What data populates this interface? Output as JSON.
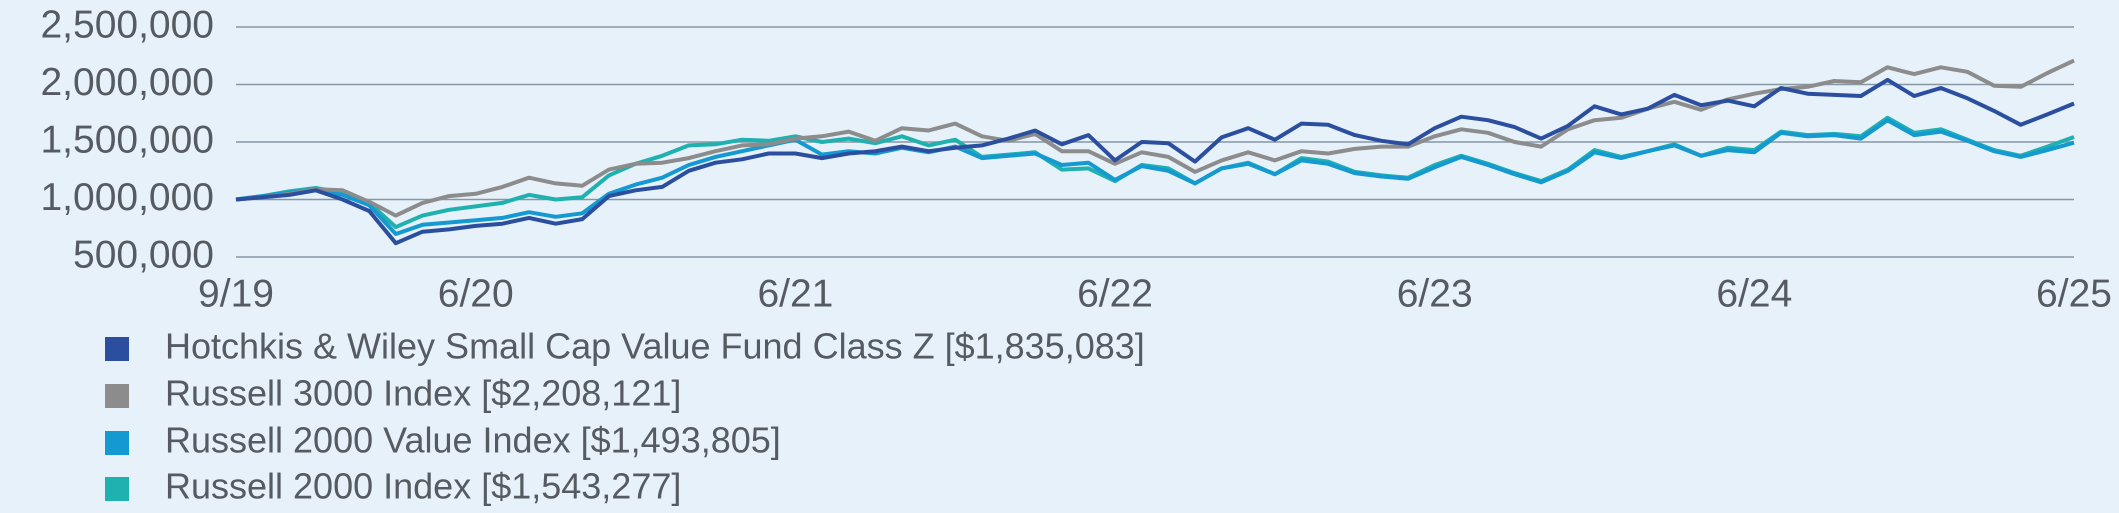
{
  "chart_data": {
    "type": "line",
    "categories": [
      "9/19",
      null,
      null,
      null,
      null,
      null,
      null,
      null,
      null,
      "6/20",
      null,
      null,
      null,
      null,
      null,
      null,
      null,
      null,
      null,
      null,
      null,
      "6/21",
      null,
      null,
      null,
      null,
      null,
      null,
      null,
      null,
      null,
      null,
      null,
      "6/22",
      null,
      null,
      null,
      null,
      null,
      null,
      null,
      null,
      null,
      null,
      null,
      "6/23",
      null,
      null,
      null,
      null,
      null,
      null,
      null,
      null,
      null,
      null,
      null,
      "6/24",
      null,
      null,
      null,
      null,
      null,
      null,
      null,
      null,
      null,
      null,
      null,
      "6/25"
    ],
    "ylim": [
      500000,
      2500000
    ],
    "yticks": [
      {
        "value": 500000,
        "label": "500,000"
      },
      {
        "value": 1000000,
        "label": "1,000,000"
      },
      {
        "value": 1500000,
        "label": "1,500,000"
      },
      {
        "value": 2000000,
        "label": "2,000,000"
      },
      {
        "value": 2500000,
        "label": "2,500,000"
      }
    ],
    "grid": true,
    "legend": "bottom-left",
    "series": [
      {
        "name": "Hotchkis & Wiley Small Cap Value Fund Class Z [$1,835,083]",
        "color": "#2b4f9e",
        "values": [
          1000000,
          1020000,
          1040000,
          1080000,
          1000000,
          900000,
          620000,
          720000,
          740000,
          770000,
          790000,
          840000,
          790000,
          830000,
          1030000,
          1080000,
          1110000,
          1250000,
          1320000,
          1350000,
          1400000,
          1400000,
          1360000,
          1400000,
          1420000,
          1460000,
          1420000,
          1450000,
          1470000,
          1530000,
          1600000,
          1480000,
          1560000,
          1340000,
          1500000,
          1490000,
          1330000,
          1540000,
          1620000,
          1520000,
          1660000,
          1650000,
          1560000,
          1510000,
          1480000,
          1620000,
          1720000,
          1690000,
          1630000,
          1530000,
          1640000,
          1810000,
          1740000,
          1790000,
          1910000,
          1820000,
          1860000,
          1810000,
          1970000,
          1920000,
          1910000,
          1900000,
          2040000,
          1900000,
          1970000,
          1880000,
          1770000,
          1650000,
          1740000,
          1835083
        ]
      },
      {
        "name": "Russell 3000 Index [$2,208,121]",
        "color": "#8c8c8c",
        "values": [
          1000000,
          1020000,
          1050000,
          1090000,
          1080000,
          980000,
          860000,
          970000,
          1030000,
          1050000,
          1110000,
          1190000,
          1140000,
          1120000,
          1260000,
          1310000,
          1320000,
          1360000,
          1420000,
          1470000,
          1480000,
          1530000,
          1550000,
          1590000,
          1510000,
          1620000,
          1600000,
          1660000,
          1550000,
          1510000,
          1570000,
          1420000,
          1420000,
          1310000,
          1410000,
          1370000,
          1240000,
          1340000,
          1410000,
          1340000,
          1420000,
          1400000,
          1440000,
          1460000,
          1460000,
          1550000,
          1610000,
          1580000,
          1500000,
          1460000,
          1610000,
          1690000,
          1710000,
          1790000,
          1850000,
          1780000,
          1870000,
          1920000,
          1960000,
          1980000,
          2030000,
          2020000,
          2150000,
          2090000,
          2150000,
          2110000,
          1990000,
          1980000,
          2100000,
          2208121
        ]
      },
      {
        "name": "Russell 2000 Value Index [$1,493,805]",
        "color": "#1499d1",
        "values": [
          1000000,
          1030000,
          1060000,
          1090000,
          1040000,
          950000,
          700000,
          780000,
          800000,
          820000,
          840000,
          890000,
          850000,
          880000,
          1050000,
          1130000,
          1190000,
          1300000,
          1370000,
          1420000,
          1470000,
          1520000,
          1390000,
          1420000,
          1400000,
          1450000,
          1410000,
          1460000,
          1360000,
          1380000,
          1400000,
          1300000,
          1320000,
          1170000,
          1290000,
          1250000,
          1140000,
          1270000,
          1310000,
          1220000,
          1340000,
          1310000,
          1230000,
          1200000,
          1180000,
          1280000,
          1370000,
          1300000,
          1220000,
          1150000,
          1250000,
          1410000,
          1360000,
          1420000,
          1470000,
          1380000,
          1430000,
          1410000,
          1580000,
          1550000,
          1560000,
          1530000,
          1690000,
          1560000,
          1590000,
          1510000,
          1420000,
          1370000,
          1430000,
          1493805
        ]
      },
      {
        "name": "Russell 2000 Index [$1,543,277]",
        "color": "#1fb0b0",
        "values": [
          1000000,
          1030000,
          1070000,
          1100000,
          1060000,
          970000,
          760000,
          860000,
          910000,
          940000,
          970000,
          1040000,
          1000000,
          1020000,
          1210000,
          1310000,
          1380000,
          1470000,
          1480000,
          1520000,
          1510000,
          1550000,
          1500000,
          1530000,
          1490000,
          1550000,
          1470000,
          1520000,
          1370000,
          1390000,
          1410000,
          1260000,
          1270000,
          1160000,
          1300000,
          1270000,
          1140000,
          1270000,
          1320000,
          1220000,
          1360000,
          1330000,
          1240000,
          1210000,
          1190000,
          1300000,
          1380000,
          1310000,
          1230000,
          1160000,
          1260000,
          1430000,
          1370000,
          1420000,
          1480000,
          1380000,
          1450000,
          1430000,
          1590000,
          1560000,
          1570000,
          1550000,
          1710000,
          1580000,
          1610000,
          1520000,
          1430000,
          1380000,
          1460000,
          1543277
        ]
      }
    ]
  }
}
